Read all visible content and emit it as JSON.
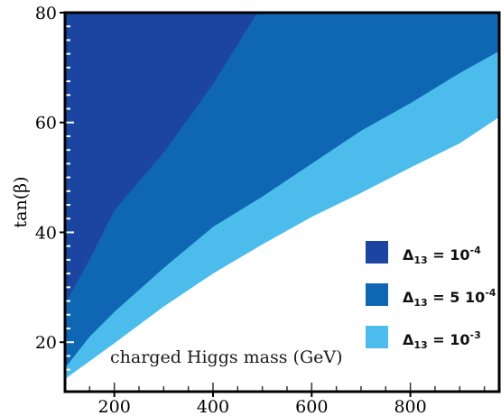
{
  "chart_data": {
    "type": "area",
    "title": "",
    "xlabel": "charged Higgs mass (GeV)",
    "ylabel": "tan(β)",
    "xlim": [
      100,
      980
    ],
    "ylim": [
      11,
      80
    ],
    "xticks": [
      200,
      400,
      600,
      800
    ],
    "yticks": [
      20,
      40,
      60,
      80
    ],
    "grid": false,
    "legend_position": "bottom-right",
    "series": [
      {
        "legend": [
          "Δ",
          "13",
          " = 10",
          "-3"
        ],
        "color": "#4bbcec",
        "boundary": [
          [
            100,
            13.3
          ],
          [
            200,
            19.8
          ],
          [
            300,
            26.5
          ],
          [
            400,
            32.5
          ],
          [
            500,
            37.8
          ],
          [
            600,
            42.8
          ],
          [
            700,
            47.2
          ],
          [
            800,
            51.8
          ],
          [
            900,
            56.2
          ],
          [
            980,
            61
          ]
        ]
      },
      {
        "legend": [
          "Δ",
          "13",
          " = 5 10",
          "-4"
        ],
        "color": "#0f67b4",
        "boundary": [
          [
            100,
            15.3
          ],
          [
            150,
            21
          ],
          [
            200,
            25.5
          ],
          [
            300,
            33.5
          ],
          [
            400,
            41
          ],
          [
            500,
            46.5
          ],
          [
            600,
            52.5
          ],
          [
            700,
            58.5
          ],
          [
            800,
            63.5
          ],
          [
            900,
            69
          ],
          [
            980,
            73
          ]
        ]
      },
      {
        "legend": [
          "Δ",
          "13",
          " = 10",
          "-4"
        ],
        "color": "#1c45a1",
        "boundary": [
          [
            100,
            27
          ],
          [
            150,
            35
          ],
          [
            200,
            44
          ],
          [
            300,
            54.5
          ],
          [
            400,
            67
          ],
          [
            490,
            80
          ]
        ]
      }
    ]
  }
}
